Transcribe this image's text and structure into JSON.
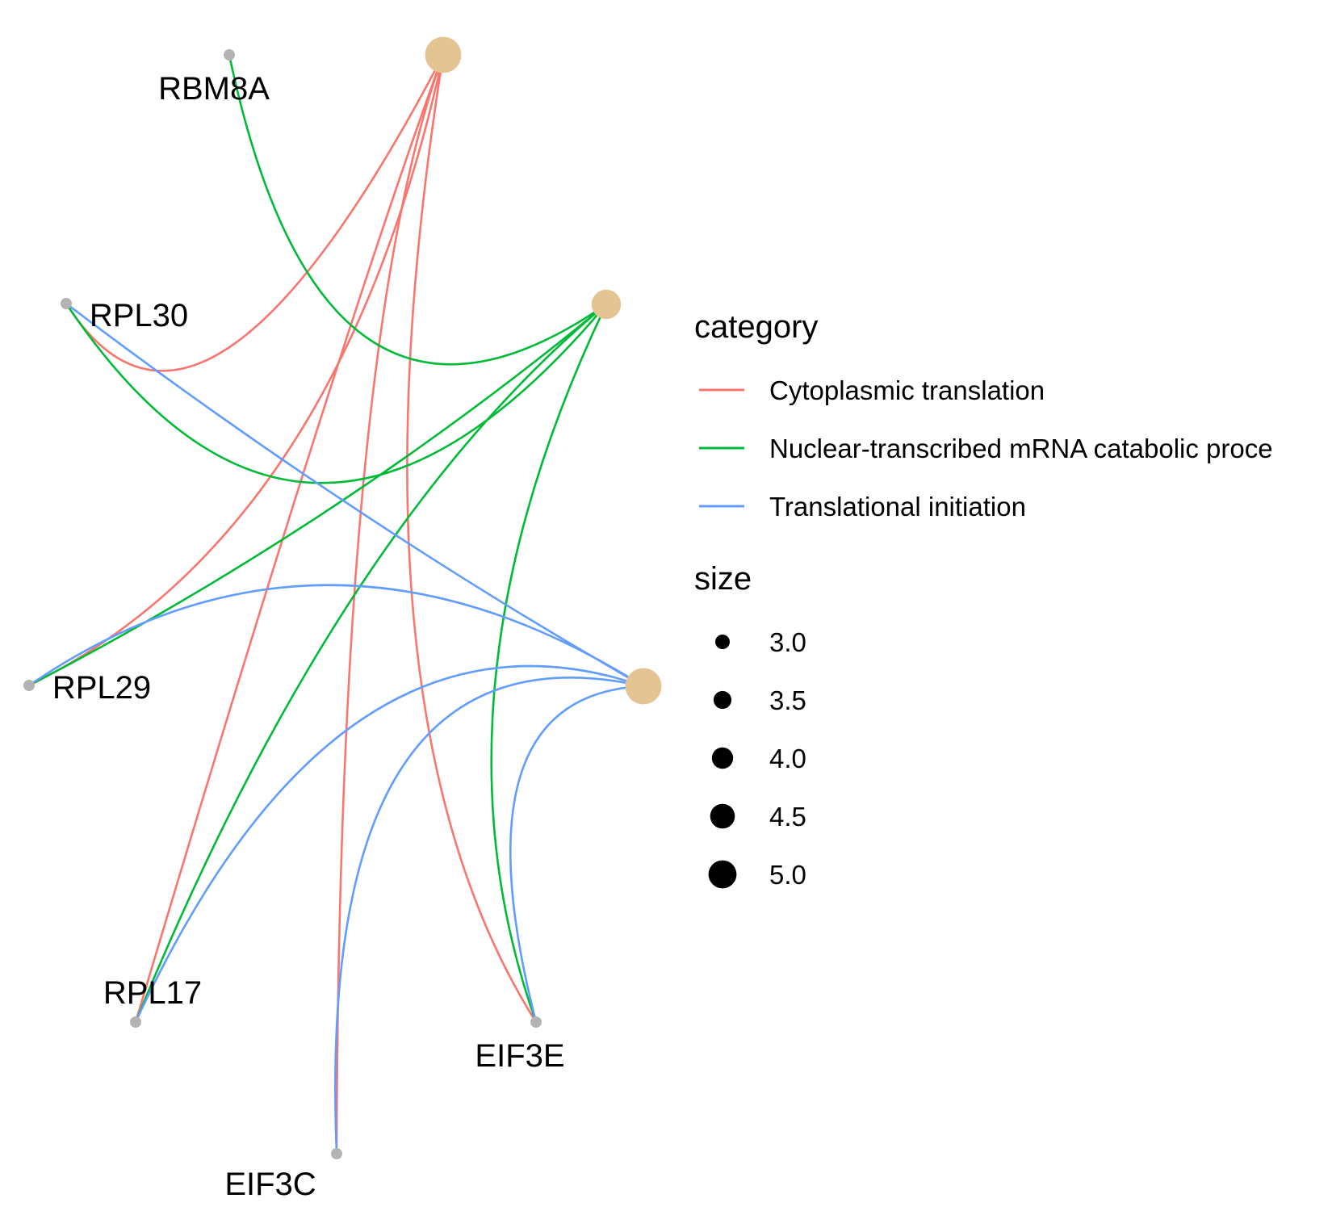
{
  "network": {
    "categories": [
      {
        "id": "cyto",
        "name": "Cytoplasmic translation",
        "color": "#F8766D",
        "size": 5.0
      },
      {
        "id": "nuc",
        "name": "Nuclear-transcribed mRNA catabolic process",
        "color": "#00BA38",
        "size": 4.0
      },
      {
        "id": "ti",
        "name": "Translational initiation",
        "color": "#619CFF",
        "size": 5.0
      }
    ],
    "category_node_color": "#E5C494",
    "gene_node_color": "#B3B3B3",
    "genes": [
      {
        "id": "RBM8A",
        "label": "RBM8A"
      },
      {
        "id": "RPL30",
        "label": "RPL30"
      },
      {
        "id": "RPL29",
        "label": "RPL29"
      },
      {
        "id": "RPL17",
        "label": "RPL17"
      },
      {
        "id": "EIF3C",
        "label": "EIF3C"
      },
      {
        "id": "EIF3E",
        "label": "EIF3E"
      }
    ],
    "edges": [
      {
        "from": "cyto",
        "to": "RPL30"
      },
      {
        "from": "cyto",
        "to": "RPL29"
      },
      {
        "from": "cyto",
        "to": "RPL17"
      },
      {
        "from": "cyto",
        "to": "EIF3C"
      },
      {
        "from": "cyto",
        "to": "EIF3E"
      },
      {
        "from": "nuc",
        "to": "RBM8A"
      },
      {
        "from": "nuc",
        "to": "RPL30"
      },
      {
        "from": "nuc",
        "to": "RPL29"
      },
      {
        "from": "nuc",
        "to": "RPL17"
      },
      {
        "from": "nuc",
        "to": "EIF3E"
      },
      {
        "from": "ti",
        "to": "RPL30"
      },
      {
        "from": "ti",
        "to": "RPL29"
      },
      {
        "from": "ti",
        "to": "RPL17"
      },
      {
        "from": "ti",
        "to": "EIF3C"
      },
      {
        "from": "ti",
        "to": "EIF3E"
      }
    ]
  },
  "legend": {
    "category_title": "category",
    "category_items": [
      {
        "label": "Cytoplasmic translation",
        "color": "#F8766D"
      },
      {
        "label": "Nuclear-transcribed mRNA catabolic proce",
        "color": "#00BA38"
      },
      {
        "label": "Translational initiation",
        "color": "#619CFF"
      }
    ],
    "size_title": "size",
    "size_items": [
      {
        "label": "3.0",
        "value": 3.0
      },
      {
        "label": "3.5",
        "value": 3.5
      },
      {
        "label": "4.0",
        "value": 4.0
      },
      {
        "label": "4.5",
        "value": 4.5
      },
      {
        "label": "5.0",
        "value": 5.0
      }
    ]
  }
}
